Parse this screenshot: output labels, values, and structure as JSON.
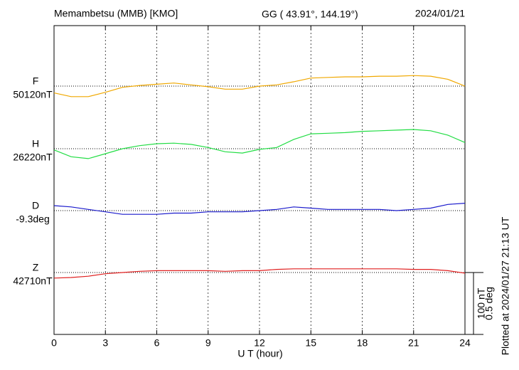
{
  "chart_data": {
    "type": "line",
    "title": "Memambetsu (MMB)  [KMO]",
    "subtitle": "GG ( 43.91°, 144.19°)",
    "date": "2024/01/21",
    "x_label": "U T (hour)",
    "note": "Plotted at 2024/01/27 21:13 UT",
    "x": [
      0,
      1,
      2,
      3,
      4,
      5,
      6,
      7,
      8,
      9,
      10,
      11,
      12,
      13,
      14,
      15,
      16,
      17,
      18,
      19,
      20,
      21,
      22,
      23,
      24
    ],
    "xlim": [
      0,
      24
    ],
    "xticks": [
      0,
      3,
      6,
      9,
      12,
      15,
      18,
      21,
      24
    ],
    "grid": true,
    "scale": {
      "nT": 100,
      "deg": 0.5,
      "nT_label": "100 nT",
      "deg_label": "0.5 deg"
    },
    "series": [
      {
        "name": "F",
        "color": "#f0a800",
        "unit": "nT",
        "baseline": 50120,
        "baseline_label": "50120nT",
        "values": [
          50109,
          50103,
          50103,
          50110,
          50118,
          50121,
          50123,
          50125,
          50122,
          50119,
          50115,
          50115,
          50120,
          50122,
          50127,
          50133,
          50134,
          50135,
          50135,
          50136,
          50136,
          50137,
          50136,
          50131,
          50120
        ]
      },
      {
        "name": "H",
        "color": "#22dd44",
        "unit": "nT",
        "baseline": 26220,
        "baseline_label": "26220nT",
        "values": [
          26218,
          26207,
          26204,
          26212,
          26220,
          26225,
          26228,
          26229,
          26227,
          26222,
          26215,
          26213,
          26219,
          26222,
          26235,
          26244,
          26245,
          26246,
          26248,
          26249,
          26250,
          26251,
          26249,
          26242,
          26230
        ]
      },
      {
        "name": "D",
        "color": "#1a1acc",
        "unit": "deg",
        "baseline": -9.3,
        "baseline_label": "-9.3deg",
        "values": [
          -9.26,
          -9.27,
          -9.29,
          -9.31,
          -9.33,
          -9.33,
          -9.33,
          -9.32,
          -9.32,
          -9.31,
          -9.31,
          -9.31,
          -9.3,
          -9.29,
          -9.27,
          -9.28,
          -9.29,
          -9.29,
          -9.29,
          -9.29,
          -9.3,
          -9.29,
          -9.28,
          -9.25,
          -9.24
        ]
      },
      {
        "name": "Z",
        "color": "#e02020",
        "unit": "nT",
        "baseline": 42710,
        "baseline_label": "42710nT",
        "values": [
          42701,
          42702,
          42704,
          42708,
          42710,
          42712,
          42713,
          42713,
          42713,
          42713,
          42712,
          42713,
          42713,
          42715,
          42716,
          42716,
          42716,
          42716,
          42716,
          42716,
          42716,
          42715,
          42715,
          42713,
          42709
        ]
      }
    ]
  }
}
